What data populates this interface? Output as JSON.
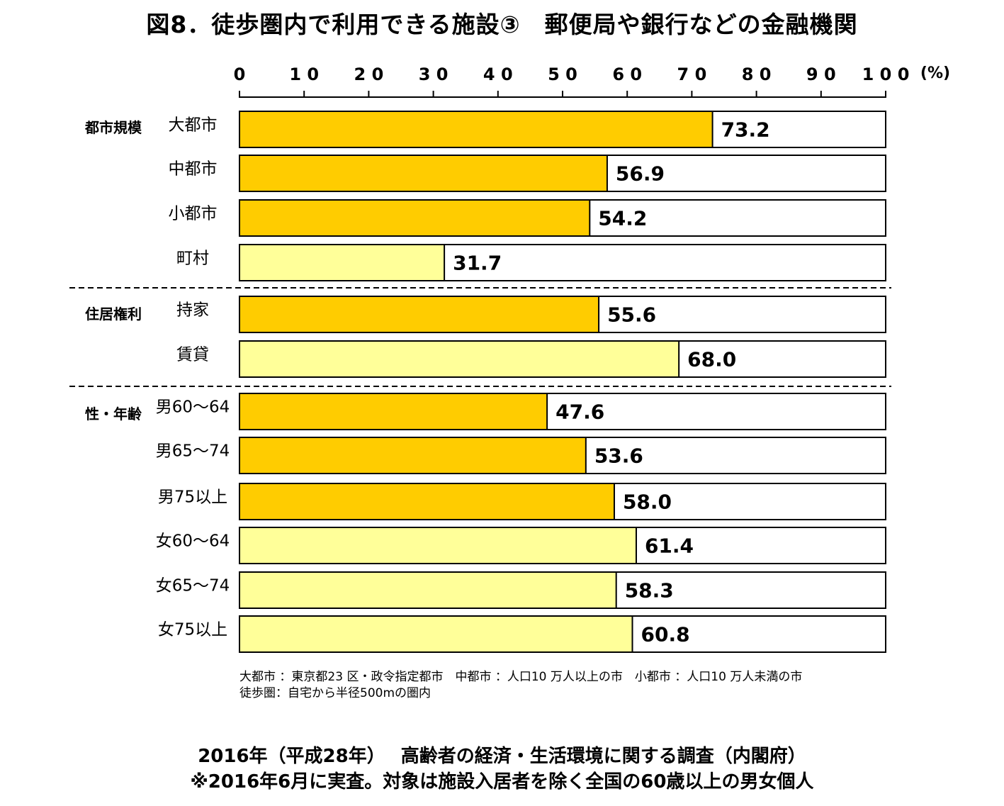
{
  "title": "図8．徒歩圏内で利用できる施設③　郵便局や銀行などの金融機関",
  "axis_unit": "(%)",
  "notes": [
    "大都市 ：東京都23 区・政令指定都市　中都市 ：人口10 万人以上の市　小都市 ：人口10 万人未満の市",
    "徒歩圏：自宅から半径500mの圏内"
  ],
  "footer": [
    "2016年（平成28年）　 高齢者の経済・生活環境に関する調査（内閣府）",
    "※2016年6月に実査。対象は施設入居者を除く全国の60歳以上の男女個人"
  ],
  "colors": {
    "dark_bar": "#FFCC00",
    "light_bar": "#FFFF99",
    "frame": "#000000",
    "background": "#FFFFFF"
  },
  "chart_data": {
    "type": "bar",
    "orientation": "horizontal",
    "xlim": [
      0,
      100
    ],
    "ticks": [
      "0",
      "1 0",
      "2 0",
      "3 0",
      "4 0",
      "5 0",
      "6 0",
      "7 0",
      "8 0",
      "9 0",
      "1 0 0"
    ],
    "tick_values": [
      0,
      10,
      20,
      30,
      40,
      50,
      60,
      70,
      80,
      90,
      100
    ],
    "groups": [
      {
        "label": "都市規模",
        "items": [
          {
            "label": "大都市",
            "value": 73.2,
            "value_label": "73.2",
            "shade": "dark"
          },
          {
            "label": "中都市",
            "value": 56.9,
            "value_label": "56.9",
            "shade": "dark"
          },
          {
            "label": "小都市",
            "value": 54.2,
            "value_label": "54.2",
            "shade": "dark"
          },
          {
            "label": "町村",
            "value": 31.7,
            "value_label": "31.7",
            "shade": "light"
          }
        ]
      },
      {
        "label": "住居権利",
        "items": [
          {
            "label": "持家",
            "value": 55.6,
            "value_label": "55.6",
            "shade": "dark"
          },
          {
            "label": "賃貸",
            "value": 68.0,
            "value_label": "68.0",
            "shade": "light"
          }
        ]
      },
      {
        "label": "性・年齢",
        "items": [
          {
            "label": "男60～64",
            "value": 47.6,
            "value_label": "47.6",
            "shade": "dark"
          },
          {
            "label": "男65～74",
            "value": 53.6,
            "value_label": "53.6",
            "shade": "dark"
          },
          {
            "label": "男75以上",
            "value": 58.0,
            "value_label": "58.0",
            "shade": "dark"
          },
          {
            "label": "女60～64",
            "value": 61.4,
            "value_label": "61.4",
            "shade": "light"
          },
          {
            "label": "女65～74",
            "value": 58.3,
            "value_label": "58.3",
            "shade": "light"
          },
          {
            "label": "女75以上",
            "value": 60.8,
            "value_label": "60.8",
            "shade": "light"
          }
        ]
      }
    ]
  }
}
